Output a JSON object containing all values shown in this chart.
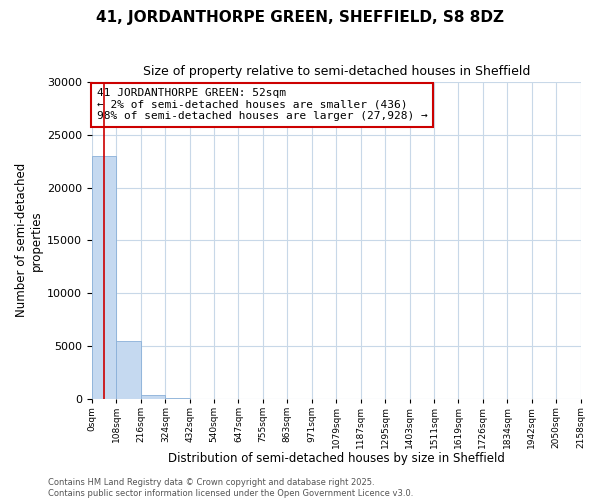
{
  "title": "41, JORDANTHORPE GREEN, SHEFFIELD, S8 8DZ",
  "subtitle": "Size of property relative to semi-detached houses in Sheffield",
  "xlabel": "Distribution of semi-detached houses by size in Sheffield",
  "ylabel": "Number of semi-detached\nproperties",
  "property_size": 52,
  "annotation_label": "41 JORDANTHORPE GREEN: 52sqm",
  "annotation_line1": "← 2% of semi-detached houses are smaller (436)",
  "annotation_line2": "98% of semi-detached houses are larger (27,928) →",
  "bar_color": "#c5d9f0",
  "bar_edge_color": "#8ab0d8",
  "highlight_color": "#cc0000",
  "annotation_box_edge": "#cc0000",
  "background_color": "#ffffff",
  "plot_bg_color": "#ffffff",
  "grid_color": "#c8d8e8",
  "bins": [
    0,
    108,
    216,
    324,
    432,
    540,
    647,
    755,
    863,
    971,
    1079,
    1187,
    1295,
    1403,
    1511,
    1619,
    1726,
    1834,
    1942,
    2050,
    2158
  ],
  "bin_labels": [
    "0sqm",
    "108sqm",
    "216sqm",
    "324sqm",
    "432sqm",
    "540sqm",
    "647sqm",
    "755sqm",
    "863sqm",
    "971sqm",
    "1079sqm",
    "1187sqm",
    "1295sqm",
    "1403sqm",
    "1511sqm",
    "1619sqm",
    "1726sqm",
    "1834sqm",
    "1942sqm",
    "2050sqm",
    "2158sqm"
  ],
  "bar_heights": [
    23000,
    5500,
    350,
    30,
    5,
    2,
    1,
    0,
    0,
    0,
    0,
    0,
    0,
    0,
    0,
    0,
    0,
    0,
    0,
    0
  ],
  "ylim": [
    0,
    30000
  ],
  "yticks": [
    0,
    5000,
    10000,
    15000,
    20000,
    25000,
    30000
  ],
  "footer": "Contains HM Land Registry data © Crown copyright and database right 2025.\nContains public sector information licensed under the Open Government Licence v3.0.",
  "figsize": [
    6.0,
    5.0
  ],
  "dpi": 100
}
